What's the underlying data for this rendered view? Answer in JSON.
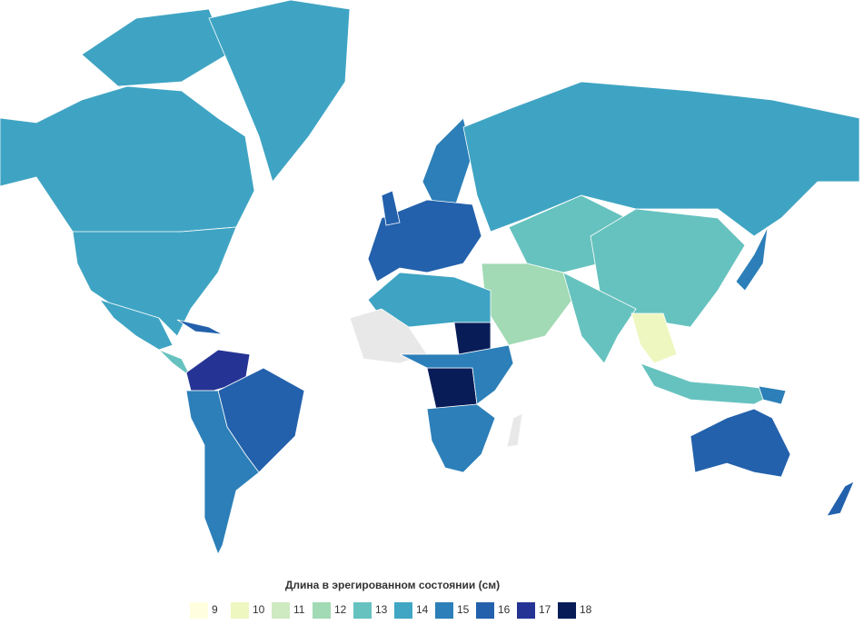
{
  "legend": {
    "title": "Длина в эрегированном состоянии (см)",
    "items": [
      {
        "value": 9,
        "color": "#ffffe0"
      },
      {
        "value": 10,
        "color": "#eef7c0"
      },
      {
        "value": 11,
        "color": "#cdeac0"
      },
      {
        "value": 12,
        "color": "#a1dab4"
      },
      {
        "value": 13,
        "color": "#66c2bf"
      },
      {
        "value": 14,
        "color": "#41a6c4"
      },
      {
        "value": 15,
        "color": "#2c7fb8"
      },
      {
        "value": 16,
        "color": "#2361ac"
      },
      {
        "value": 17,
        "color": "#253494"
      },
      {
        "value": 18,
        "color": "#081d58"
      }
    ]
  }
}
